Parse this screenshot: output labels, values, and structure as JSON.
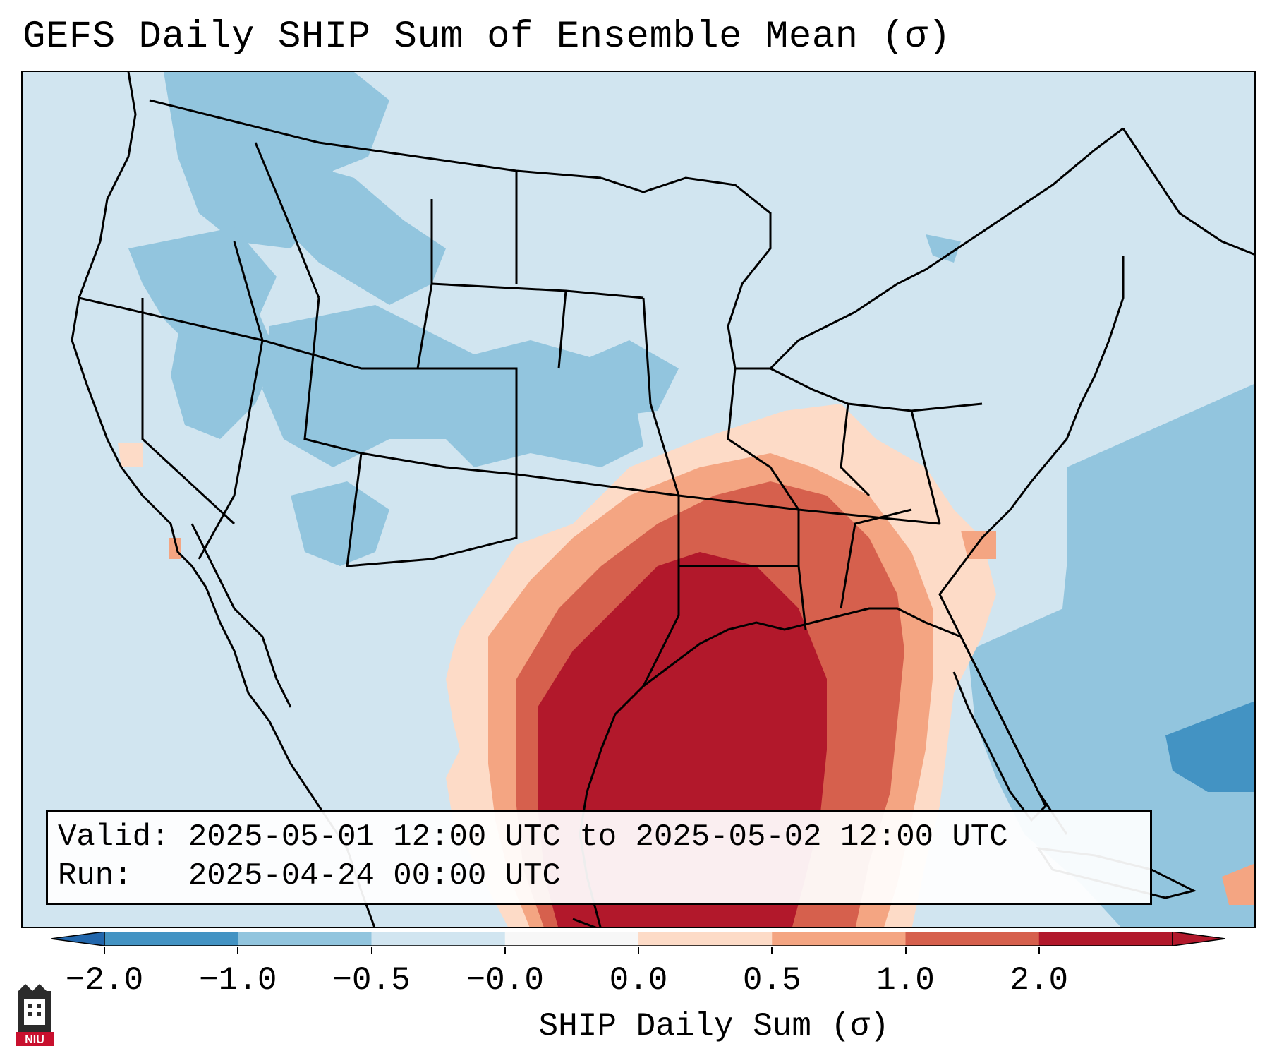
{
  "title": "GEFS Daily SHIP Sum of Ensemble Mean (σ)",
  "info": {
    "valid_line": "Valid: 2025-05-01 12:00 UTC to 2025-05-02 12:00 UTC",
    "run_line": "Run:   2025-04-24 00:00 UTC"
  },
  "colorbar": {
    "label": "SHIP Daily Sum (σ)",
    "ticks": [
      "−2.0",
      "−1.0",
      "−0.5",
      "−0.0",
      "0.0",
      "0.5",
      "1.0",
      "2.0"
    ],
    "colors": [
      "#4393c3",
      "#92c5de",
      "#d1e5f0",
      "#f7f7f7",
      "#fddbc7",
      "#f4a582",
      "#d6604d",
      "#b2182b"
    ],
    "extend_low_color": "#2166ac",
    "extend_high_color": "#b2182b"
  },
  "map": {
    "background_color": "#d1e5f0",
    "coastline_color": "#000000"
  },
  "logo": {
    "text": "NIU",
    "color": "#c8102e"
  }
}
